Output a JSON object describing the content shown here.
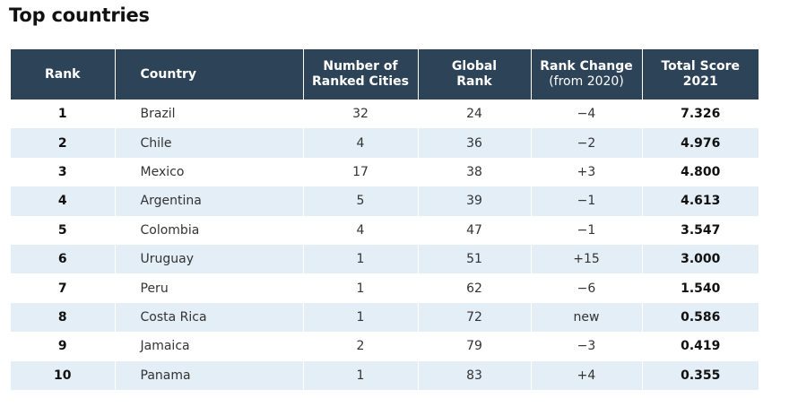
{
  "title": "Top countries",
  "table": {
    "headers": {
      "rank": "Rank",
      "country": "Country",
      "cities_line1": "Number of",
      "cities_line2": "Ranked Cities",
      "global_line1": "Global",
      "global_line2": "Rank",
      "change_line1": "Rank Change",
      "change_line2": "(from 2020)",
      "score_line1": "Total Score",
      "score_line2": "2021"
    },
    "rows": [
      {
        "rank": "1",
        "country": "Brazil",
        "cities": "32",
        "global": "24",
        "change": "−4",
        "score": "7.326"
      },
      {
        "rank": "2",
        "country": "Chile",
        "cities": "4",
        "global": "36",
        "change": "−2",
        "score": "4.976"
      },
      {
        "rank": "3",
        "country": "Mexico",
        "cities": "17",
        "global": "38",
        "change": "+3",
        "score": "4.800"
      },
      {
        "rank": "4",
        "country": "Argentina",
        "cities": "5",
        "global": "39",
        "change": "−1",
        "score": "4.613"
      },
      {
        "rank": "5",
        "country": "Colombia",
        "cities": "4",
        "global": "47",
        "change": "−1",
        "score": "3.547"
      },
      {
        "rank": "6",
        "country": "Uruguay",
        "cities": "1",
        "global": "51",
        "change": "+15",
        "score": "3.000"
      },
      {
        "rank": "7",
        "country": "Peru",
        "cities": "1",
        "global": "62",
        "change": "−6",
        "score": "1.540"
      },
      {
        "rank": "8",
        "country": "Costa Rica",
        "cities": "1",
        "global": "72",
        "change": "new",
        "score": "0.586"
      },
      {
        "rank": "9",
        "country": "Jamaica",
        "cities": "2",
        "global": "79",
        "change": "−3",
        "score": "0.419"
      },
      {
        "rank": "10",
        "country": "Panama",
        "cities": "1",
        "global": "83",
        "change": "+4",
        "score": "0.355"
      }
    ]
  },
  "colors": {
    "header_bg": "#2d4357",
    "stripe_bg": "#e3eef7"
  }
}
